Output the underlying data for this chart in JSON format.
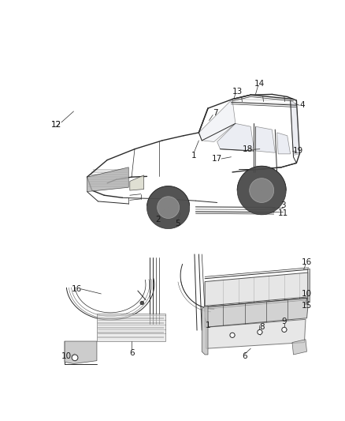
{
  "bg_color": "#ffffff",
  "fig_width": 4.38,
  "fig_height": 5.33,
  "dpi": 100,
  "line_color": "#2a2a2a",
  "number_fontsize": 7.5,
  "number_color": "#1a1a1a",
  "gray_fill": "#e0e0e0",
  "dark_fill": "#4a4a4a",
  "mid_fill": "#c0c0c0",
  "light_fill": "#f0f0f0"
}
